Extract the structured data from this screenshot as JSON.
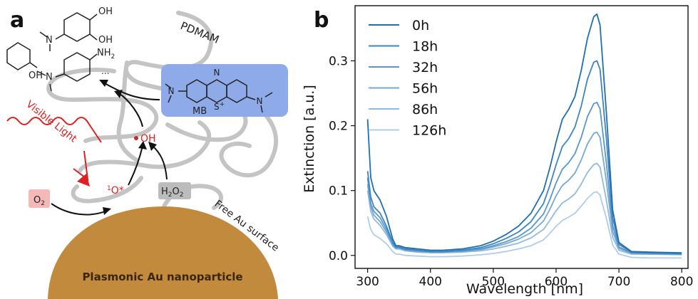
{
  "panel_a": {
    "label": "a",
    "polymer_label": "PDMAM",
    "products": {
      "ellipsis": "...",
      "oh_top_1": "OH",
      "oh_top_2": "OH",
      "oh_phenol": "OH",
      "nh2": "NH",
      "nh2_sub": "2",
      "n_1": "N",
      "n_2": "N"
    },
    "mb": {
      "label": "MB",
      "n_left": "N",
      "n_right": "N",
      "n_top": "N",
      "s_plus": "S",
      "s_charge": "+"
    },
    "hydroxyl_radical": "OH",
    "singlet_oxygen": "O*",
    "singlet_oxygen_sup": "1",
    "o2": "O",
    "o2_sub": "2",
    "h2o2_main": "H",
    "h2o2_sub1": "2",
    "h2o2_o": "O",
    "h2o2_sub2": "2",
    "visible_light": "Visible Light",
    "free_surface": "Free Au surface",
    "nanoparticle": "Plasmonic Au nanoparticle"
  },
  "panel_b": {
    "label": "b"
  },
  "colors": {
    "polymer": "#c4c4c4",
    "gold": "#c28a3c",
    "mb_box": "#8faae8",
    "red": "#e02020",
    "o2_box": "#f4b8b8",
    "h2o2_box": "#bcbcbc"
  },
  "chart_data": {
    "type": "line",
    "xlabel": "Wavelength [nm]",
    "ylabel": "Extinction [a.u.]",
    "xlim": [
      280,
      810
    ],
    "ylim": [
      -0.02,
      0.385
    ],
    "xticks": [
      300,
      400,
      500,
      600,
      700,
      800
    ],
    "yticks": [
      0.0,
      0.1,
      0.2,
      0.3
    ],
    "ytick_labels": [
      "0.0",
      "0.1",
      "0.2",
      "0.3"
    ],
    "grid": false,
    "legend_position": "top-left",
    "series": [
      {
        "name": "0h",
        "color": "#1f6fb0",
        "peak": 0.372,
        "base": 0.004,
        "x": [
          300,
          305,
          310,
          320,
          330,
          340,
          345,
          350,
          360,
          380,
          400,
          420,
          450,
          480,
          500,
          520,
          540,
          560,
          580,
          590,
          600,
          610,
          620,
          630,
          640,
          650,
          660,
          665,
          670,
          680,
          690,
          700,
          720,
          750,
          800
        ],
        "y": [
          0.21,
          0.12,
          0.1,
          0.085,
          0.06,
          0.025,
          0.015,
          0.015,
          0.012,
          0.01,
          0.008,
          0.008,
          0.01,
          0.015,
          0.022,
          0.032,
          0.045,
          0.065,
          0.1,
          0.135,
          0.175,
          0.21,
          0.225,
          0.245,
          0.285,
          0.335,
          0.368,
          0.372,
          0.355,
          0.22,
          0.07,
          0.02,
          0.006,
          0.005,
          0.004
        ]
      },
      {
        "name": "18h",
        "color": "#3d85bf",
        "peak": 0.3,
        "base": 0.003,
        "x": [
          300,
          305,
          310,
          320,
          330,
          340,
          345,
          350,
          360,
          380,
          400,
          420,
          450,
          480,
          500,
          520,
          540,
          560,
          580,
          590,
          600,
          610,
          620,
          630,
          640,
          650,
          660,
          665,
          670,
          680,
          690,
          700,
          720,
          750,
          800
        ],
        "y": [
          0.13,
          0.09,
          0.075,
          0.065,
          0.045,
          0.02,
          0.013,
          0.013,
          0.01,
          0.008,
          0.006,
          0.006,
          0.008,
          0.012,
          0.018,
          0.026,
          0.036,
          0.052,
          0.08,
          0.108,
          0.14,
          0.168,
          0.18,
          0.198,
          0.23,
          0.272,
          0.298,
          0.3,
          0.287,
          0.18,
          0.058,
          0.017,
          0.005,
          0.004,
          0.003
        ]
      },
      {
        "name": "32h",
        "color": "#5a98cb",
        "peak": 0.236,
        "base": 0.002,
        "x": [
          300,
          305,
          310,
          320,
          330,
          340,
          345,
          350,
          360,
          380,
          400,
          420,
          450,
          480,
          500,
          520,
          540,
          560,
          580,
          590,
          600,
          610,
          620,
          630,
          640,
          650,
          660,
          665,
          670,
          680,
          690,
          700,
          720,
          750,
          800
        ],
        "y": [
          0.12,
          0.08,
          0.068,
          0.058,
          0.04,
          0.018,
          0.012,
          0.012,
          0.009,
          0.007,
          0.006,
          0.006,
          0.007,
          0.01,
          0.015,
          0.021,
          0.029,
          0.042,
          0.064,
          0.086,
          0.112,
          0.133,
          0.143,
          0.157,
          0.182,
          0.214,
          0.234,
          0.236,
          0.226,
          0.142,
          0.046,
          0.013,
          0.004,
          0.003,
          0.002
        ]
      },
      {
        "name": "56h",
        "color": "#76a9d4",
        "peak": 0.19,
        "base": 0.002,
        "x": [
          300,
          305,
          310,
          320,
          330,
          340,
          345,
          350,
          360,
          380,
          400,
          420,
          450,
          480,
          500,
          520,
          540,
          560,
          580,
          590,
          600,
          610,
          620,
          630,
          640,
          650,
          660,
          665,
          670,
          680,
          690,
          700,
          720,
          750,
          800
        ],
        "y": [
          0.11,
          0.075,
          0.062,
          0.052,
          0.036,
          0.016,
          0.011,
          0.011,
          0.008,
          0.006,
          0.005,
          0.005,
          0.006,
          0.009,
          0.013,
          0.018,
          0.025,
          0.035,
          0.053,
          0.071,
          0.092,
          0.108,
          0.116,
          0.127,
          0.147,
          0.172,
          0.188,
          0.19,
          0.182,
          0.114,
          0.037,
          0.011,
          0.003,
          0.002,
          0.002
        ]
      },
      {
        "name": "86h",
        "color": "#92badd",
        "peak": 0.142,
        "base": 0.001,
        "x": [
          300,
          305,
          310,
          320,
          330,
          340,
          345,
          350,
          360,
          380,
          400,
          420,
          450,
          480,
          500,
          520,
          540,
          560,
          580,
          590,
          600,
          610,
          620,
          630,
          640,
          650,
          660,
          665,
          670,
          680,
          690,
          700,
          720,
          750,
          800
        ],
        "y": [
          0.1,
          0.068,
          0.056,
          0.046,
          0.032,
          0.014,
          0.01,
          0.01,
          0.007,
          0.005,
          0.004,
          0.004,
          0.005,
          0.007,
          0.01,
          0.014,
          0.019,
          0.027,
          0.04,
          0.054,
          0.069,
          0.081,
          0.087,
          0.095,
          0.11,
          0.128,
          0.14,
          0.142,
          0.136,
          0.085,
          0.028,
          0.008,
          0.002,
          0.002,
          0.001
        ]
      },
      {
        "name": "126h",
        "color": "#b0cde8",
        "peak": 0.098,
        "base": -0.004,
        "x": [
          300,
          305,
          310,
          320,
          330,
          340,
          345,
          350,
          360,
          380,
          400,
          420,
          450,
          480,
          500,
          520,
          540,
          560,
          580,
          590,
          600,
          610,
          620,
          630,
          640,
          650,
          660,
          665,
          670,
          680,
          690,
          700,
          720,
          750,
          800
        ],
        "y": [
          0.06,
          0.04,
          0.032,
          0.026,
          0.018,
          0.006,
          0.002,
          0.002,
          0.0,
          -0.001,
          -0.002,
          -0.002,
          -0.001,
          0.001,
          0.003,
          0.006,
          0.01,
          0.015,
          0.024,
          0.034,
          0.045,
          0.054,
          0.059,
          0.065,
          0.076,
          0.088,
          0.097,
          0.098,
          0.093,
          0.057,
          0.016,
          0.002,
          -0.003,
          -0.004,
          -0.004
        ]
      }
    ]
  }
}
